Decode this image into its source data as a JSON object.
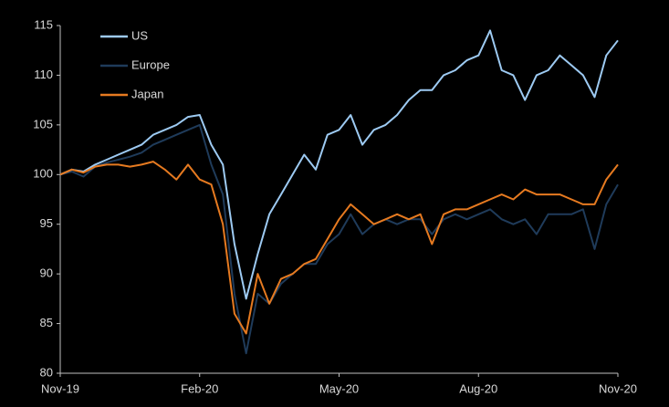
{
  "chart_data": {
    "type": "line",
    "x": [
      0,
      0.25,
      0.5,
      0.75,
      1,
      1.25,
      1.5,
      1.75,
      2,
      2.25,
      2.5,
      2.75,
      3,
      3.25,
      3.5,
      3.75,
      4,
      4.25,
      4.5,
      4.75,
      5,
      5.25,
      5.5,
      5.75,
      6,
      6.25,
      6.5,
      6.75,
      7,
      7.25,
      7.5,
      7.75,
      8,
      8.25,
      8.5,
      8.75,
      9,
      9.25,
      9.5,
      9.75,
      10,
      10.25,
      10.5,
      10.75,
      11,
      11.25,
      11.5,
      11.75,
      12
    ],
    "xlim": [
      0,
      12
    ],
    "xticks": [
      {
        "value": 0,
        "label": "Nov-19"
      },
      {
        "value": 3,
        "label": "Feb-20"
      },
      {
        "value": 6,
        "label": "May-20"
      },
      {
        "value": 9,
        "label": "Aug-20"
      },
      {
        "value": 12,
        "label": "Nov-20"
      }
    ],
    "ylim": [
      80,
      115
    ],
    "yticks": [
      80,
      85,
      90,
      95,
      100,
      105,
      110,
      115
    ],
    "grid": false,
    "legend": "top-left",
    "series": [
      {
        "name": "US",
        "color": "#9dcaf2",
        "values": [
          100,
          100.5,
          100.3,
          101,
          101.5,
          102,
          102.5,
          103,
          104,
          104.5,
          105,
          105.8,
          106,
          103,
          101,
          93,
          87.5,
          92,
          96,
          98,
          100,
          102,
          100.5,
          104,
          104.5,
          106,
          103,
          104.5,
          105,
          106,
          107.5,
          108.5,
          108.5,
          110,
          110.5,
          111.5,
          112,
          114.5,
          110.5,
          110,
          107.5,
          110,
          110.5,
          112,
          111,
          110,
          107.8,
          112,
          113.5
        ]
      },
      {
        "name": "Europe",
        "color": "#1f3b5a",
        "values": [
          100,
          100.3,
          99.8,
          100.8,
          101.2,
          101.5,
          101.8,
          102.2,
          103,
          103.5,
          104,
          104.5,
          105,
          101,
          98,
          88,
          82,
          88,
          87,
          89,
          90,
          91,
          91,
          93,
          94,
          96,
          94,
          95,
          95.5,
          95,
          95.5,
          95.5,
          94,
          95.5,
          96,
          95.5,
          96,
          96.5,
          95.5,
          95,
          95.5,
          94,
          96,
          96,
          96,
          96.5,
          92.5,
          97,
          99
        ]
      },
      {
        "name": "Japan",
        "color": "#e67a20",
        "values": [
          100,
          100.5,
          100.2,
          100.8,
          101,
          101,
          100.8,
          101,
          101.3,
          100.5,
          99.5,
          101,
          99.5,
          99,
          95,
          86,
          84,
          90,
          87,
          89.5,
          90,
          91,
          91.5,
          93.5,
          95.5,
          97,
          96,
          95,
          95.5,
          96,
          95.5,
          96,
          93,
          96,
          96.5,
          96.5,
          97,
          97.5,
          98,
          97.5,
          98.5,
          98,
          98,
          98,
          97.5,
          97,
          97,
          99.5,
          101
        ]
      }
    ]
  }
}
